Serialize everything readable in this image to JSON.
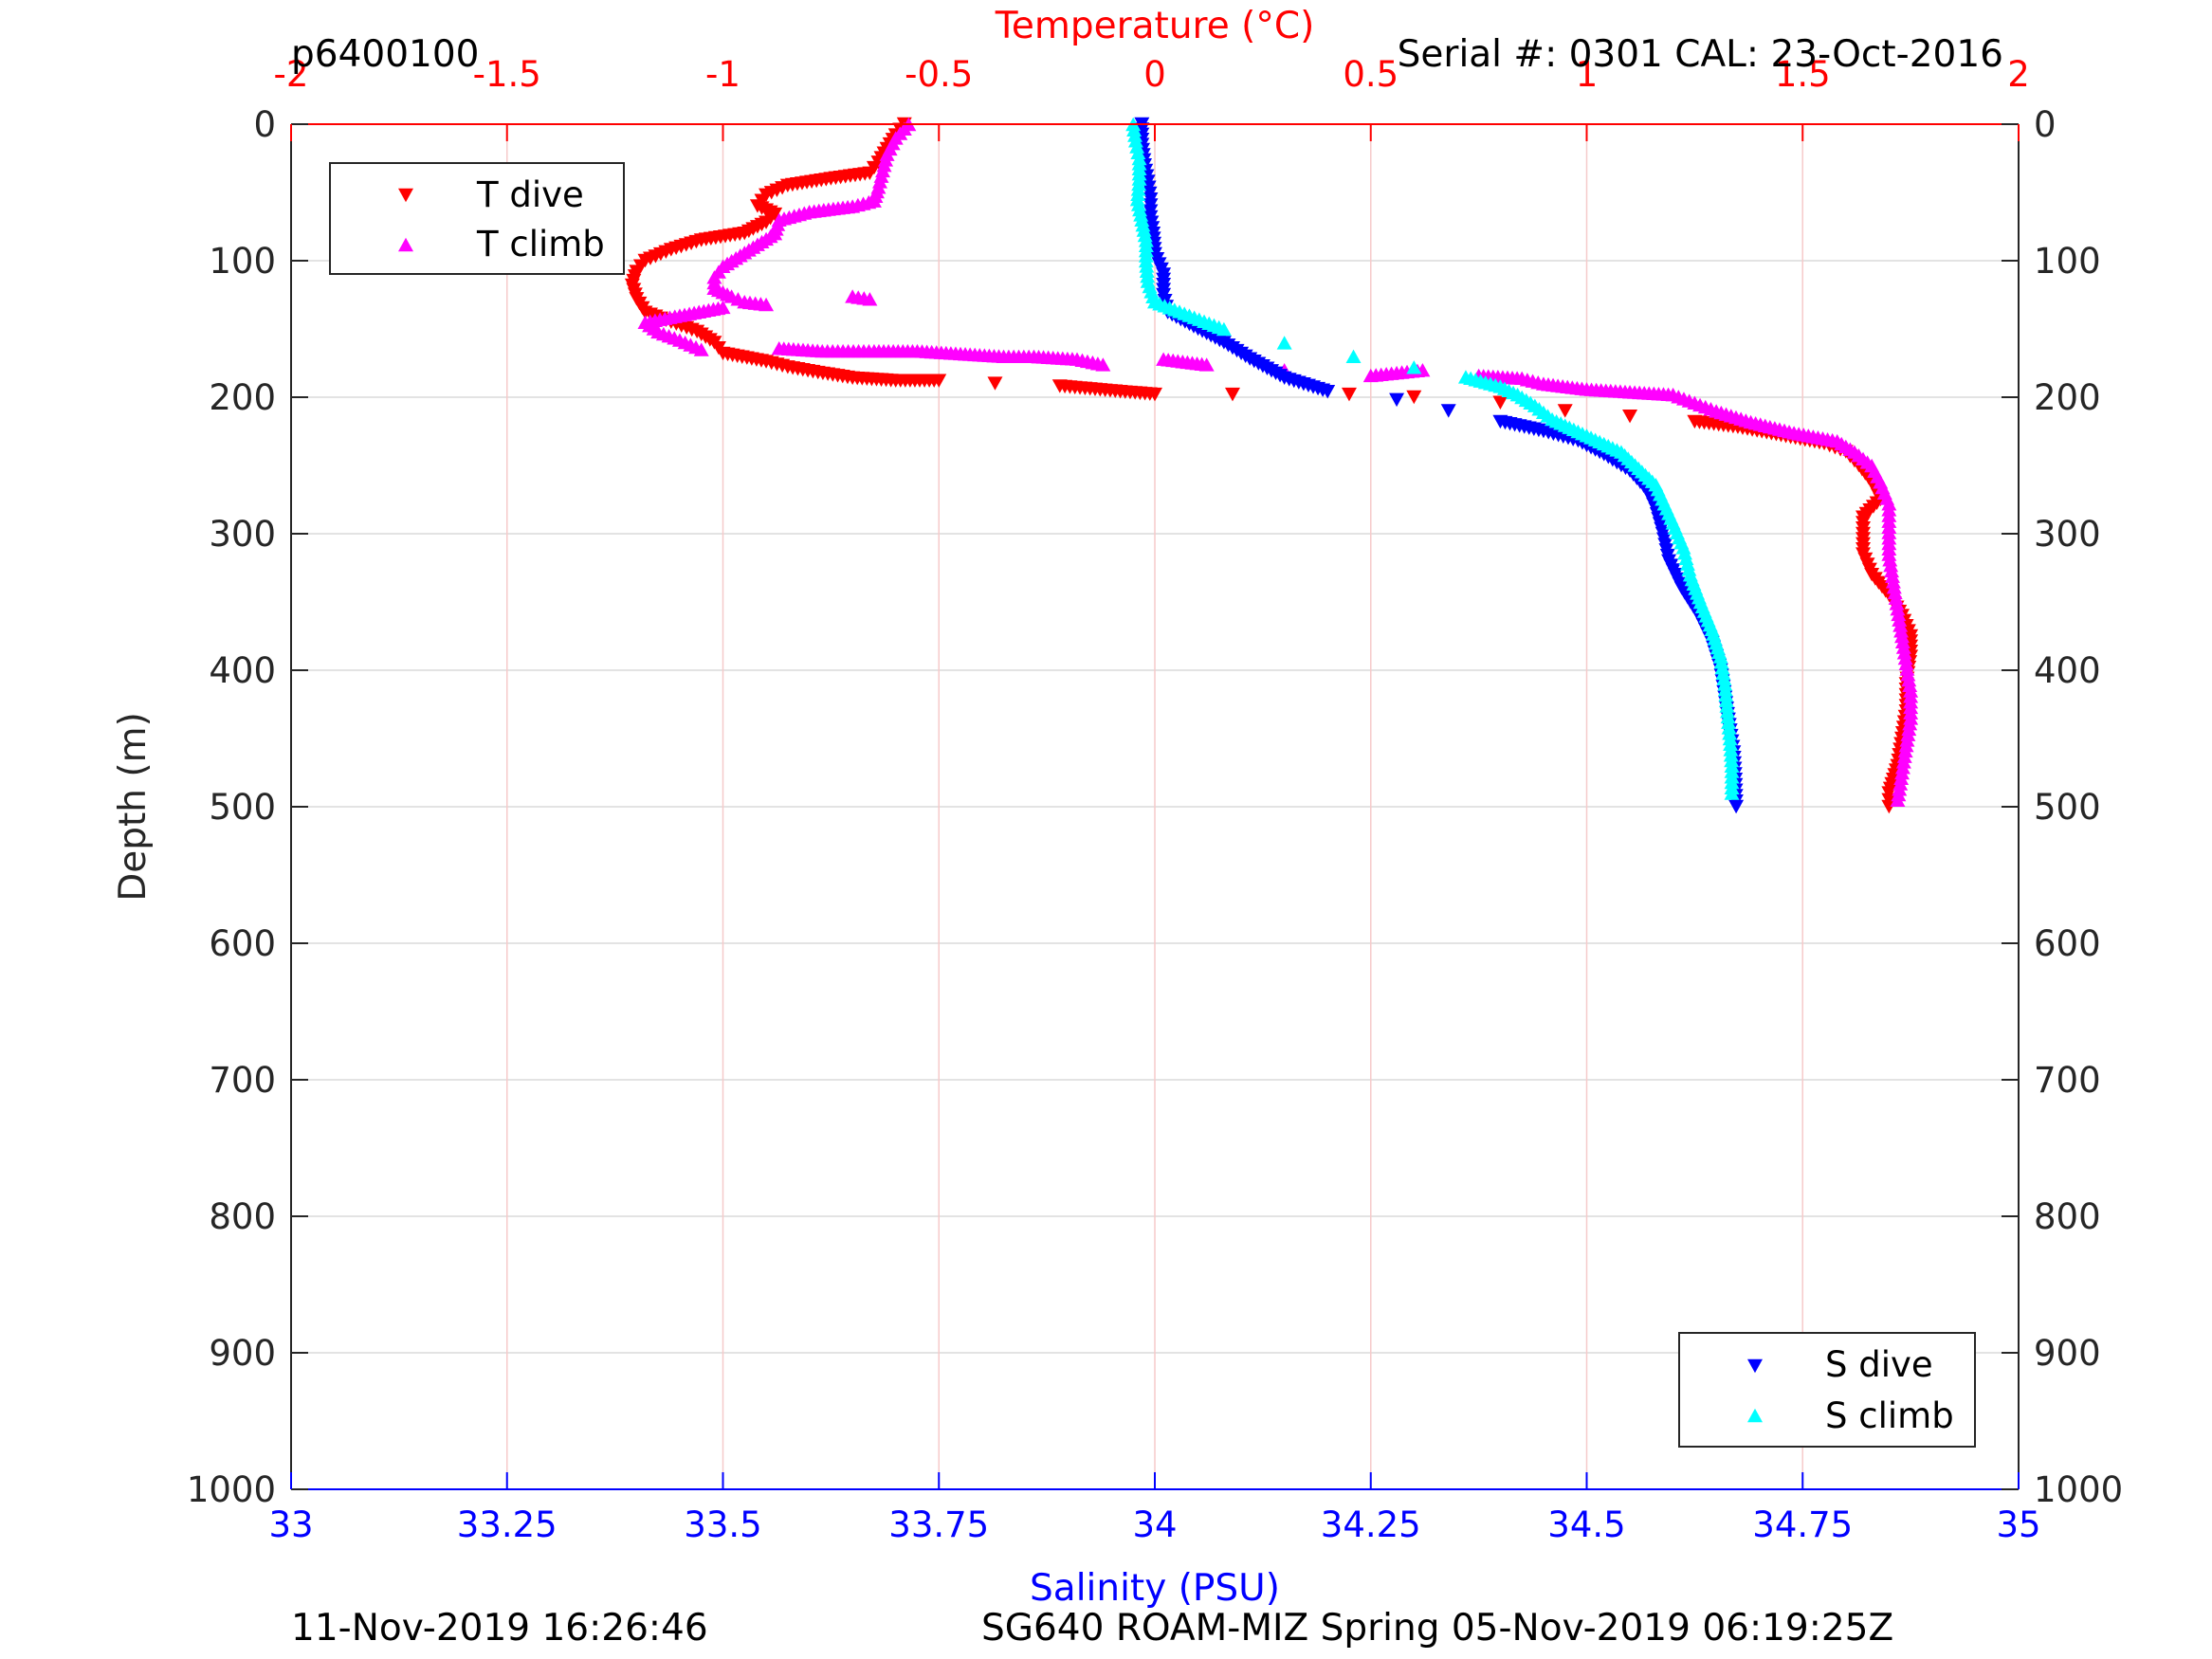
{
  "header": {
    "profile_id": "p6400100",
    "serial_cal": "Serial #: 0301  CAL: 23-Oct-2016"
  },
  "footer": {
    "timestamp": "11-Nov-2019 16:26:46",
    "mission": "SG640 ROAM-MIZ Spring 05-Nov-2019 06:19:25Z"
  },
  "colors": {
    "t_dive": "#ff0000",
    "t_climb": "#ff00ff",
    "s_dive": "#0000ff",
    "s_climb": "#00ffff",
    "temperature_axis": "#ff0000",
    "salinity_axis": "#0000ff"
  },
  "chart_data": {
    "type": "scatter",
    "title": "",
    "y_axis": {
      "label": "Depth (m)",
      "range": [
        0,
        1000
      ],
      "reversed": true,
      "ticks": [
        0,
        100,
        200,
        300,
        400,
        500,
        600,
        700,
        800,
        900,
        1000
      ],
      "tick_labels": [
        "0",
        "100",
        "200",
        "300",
        "400",
        "500",
        "600",
        "700",
        "800",
        "900",
        "1000"
      ]
    },
    "x_top_axis": {
      "label": "Temperature (°C)",
      "range": [
        -2,
        2
      ],
      "ticks": [
        -2,
        -1.5,
        -1,
        -0.5,
        0,
        0.5,
        1,
        1.5,
        2
      ],
      "tick_labels": [
        "-2",
        "-1.5",
        "-1",
        "-0.5",
        "0",
        "0.5",
        "1",
        "1.5",
        "2"
      ]
    },
    "x_bottom_axis": {
      "label": "Salinity (PSU)",
      "range": [
        33,
        35
      ],
      "ticks": [
        33,
        33.25,
        33.5,
        33.75,
        34,
        34.25,
        34.5,
        34.75,
        35
      ],
      "tick_labels": [
        "33",
        "33.25",
        "33.5",
        "33.75",
        "34",
        "34.25",
        "34.5",
        "34.75",
        "35"
      ]
    },
    "grid": true,
    "legends": [
      {
        "position": "top-left",
        "entries": [
          "T dive",
          "T climb"
        ]
      },
      {
        "position": "bottom-right",
        "entries": [
          "S dive",
          "S climb"
        ]
      }
    ],
    "series": [
      {
        "name": "T dive",
        "axis": "temperature",
        "marker": "triangle-down",
        "points": [
          [
            -0.58,
            0
          ],
          [
            -0.6,
            8
          ],
          [
            -0.62,
            18
          ],
          [
            -0.64,
            28
          ],
          [
            -0.66,
            36
          ],
          [
            -0.75,
            40
          ],
          [
            -0.85,
            45
          ],
          [
            -0.9,
            52
          ],
          [
            -0.92,
            60
          ],
          [
            -0.88,
            66
          ],
          [
            -0.9,
            72
          ],
          [
            -0.95,
            80
          ],
          [
            -1.05,
            85
          ],
          [
            -1.12,
            92
          ],
          [
            -1.18,
            100
          ],
          [
            -1.2,
            108
          ],
          [
            -1.21,
            118
          ],
          [
            -1.2,
            128
          ],
          [
            -1.18,
            138
          ],
          [
            -1.12,
            145
          ],
          [
            -1.06,
            152
          ],
          [
            -1.02,
            160
          ],
          [
            -1.0,
            168
          ],
          [
            -0.9,
            174
          ],
          [
            -0.85,
            178
          ],
          [
            -0.78,
            182
          ],
          [
            -0.7,
            186
          ],
          [
            -0.6,
            188
          ],
          [
            -0.5,
            188
          ],
          [
            -0.37,
            190
          ],
          [
            -0.22,
            192
          ],
          [
            -0.15,
            194
          ],
          [
            -0.08,
            196
          ],
          [
            0.0,
            198
          ],
          [
            0.18,
            198
          ],
          [
            0.45,
            198
          ],
          [
            0.6,
            200
          ],
          [
            0.8,
            204
          ],
          [
            0.95,
            210
          ],
          [
            1.1,
            214
          ],
          [
            1.25,
            218
          ],
          [
            1.35,
            222
          ],
          [
            1.45,
            228
          ],
          [
            1.55,
            234
          ],
          [
            1.6,
            240
          ],
          [
            1.63,
            250
          ],
          [
            1.66,
            262
          ],
          [
            1.68,
            275
          ],
          [
            1.64,
            288
          ],
          [
            1.64,
            300
          ],
          [
            1.64,
            315
          ],
          [
            1.66,
            330
          ],
          [
            1.7,
            345
          ],
          [
            1.73,
            360
          ],
          [
            1.75,
            375
          ],
          [
            1.75,
            390
          ],
          [
            1.74,
            410
          ],
          [
            1.74,
            430
          ],
          [
            1.73,
            450
          ],
          [
            1.72,
            470
          ],
          [
            1.7,
            490
          ],
          [
            1.7,
            500
          ]
        ]
      },
      {
        "name": "T climb",
        "axis": "temperature",
        "marker": "triangle-up",
        "points": [
          [
            -0.57,
            0
          ],
          [
            -0.6,
            10
          ],
          [
            -0.62,
            22
          ],
          [
            -0.63,
            34
          ],
          [
            -0.64,
            46
          ],
          [
            -0.65,
            56
          ],
          [
            -0.7,
            60
          ],
          [
            -0.8,
            64
          ],
          [
            -0.87,
            70
          ],
          [
            -0.88,
            80
          ],
          [
            -0.92,
            88
          ],
          [
            -0.96,
            96
          ],
          [
            -1.0,
            104
          ],
          [
            -1.02,
            112
          ],
          [
            -1.02,
            120
          ],
          [
            -0.98,
            126
          ],
          [
            -0.95,
            130
          ],
          [
            -0.9,
            132
          ],
          [
            -0.7,
            126
          ],
          [
            -0.66,
            128
          ],
          [
            -1.0,
            134
          ],
          [
            -1.1,
            140
          ],
          [
            -1.18,
            145
          ],
          [
            -1.15,
            152
          ],
          [
            -1.1,
            158
          ],
          [
            -1.05,
            165
          ],
          [
            -0.87,
            164
          ],
          [
            -0.77,
            166
          ],
          [
            -0.65,
            166
          ],
          [
            -0.55,
            166
          ],
          [
            -0.45,
            168
          ],
          [
            -0.35,
            170
          ],
          [
            -0.28,
            170
          ],
          [
            -0.18,
            172
          ],
          [
            -0.12,
            176
          ],
          [
            0.02,
            172
          ],
          [
            0.12,
            176
          ],
          [
            0.3,
            180
          ],
          [
            0.5,
            184
          ],
          [
            0.62,
            180
          ],
          [
            0.75,
            184
          ],
          [
            0.85,
            186
          ],
          [
            0.9,
            190
          ],
          [
            1.0,
            194
          ],
          [
            1.1,
            196
          ],
          [
            1.2,
            198
          ],
          [
            1.25,
            204
          ],
          [
            1.3,
            210
          ],
          [
            1.38,
            218
          ],
          [
            1.48,
            226
          ],
          [
            1.58,
            232
          ],
          [
            1.62,
            240
          ],
          [
            1.66,
            250
          ],
          [
            1.68,
            262
          ],
          [
            1.7,
            278
          ],
          [
            1.7,
            295
          ],
          [
            1.7,
            315
          ],
          [
            1.71,
            335
          ],
          [
            1.72,
            355
          ],
          [
            1.73,
            375
          ],
          [
            1.74,
            395
          ],
          [
            1.75,
            415
          ],
          [
            1.75,
            435
          ],
          [
            1.74,
            455
          ],
          [
            1.73,
            475
          ],
          [
            1.72,
            495
          ]
        ]
      },
      {
        "name": "S dive",
        "axis": "salinity",
        "marker": "triangle-down",
        "points": [
          [
            33.985,
            0
          ],
          [
            33.985,
            15
          ],
          [
            33.988,
            30
          ],
          [
            33.992,
            42
          ],
          [
            33.995,
            55
          ],
          [
            33.995,
            68
          ],
          [
            33.998,
            80
          ],
          [
            34.0,
            95
          ],
          [
            34.01,
            110
          ],
          [
            34.01,
            125
          ],
          [
            34.015,
            138
          ],
          [
            34.05,
            150
          ],
          [
            34.08,
            160
          ],
          [
            34.11,
            172
          ],
          [
            34.15,
            186
          ],
          [
            34.2,
            196
          ],
          [
            34.28,
            202
          ],
          [
            34.34,
            210
          ],
          [
            34.4,
            218
          ],
          [
            34.45,
            225
          ],
          [
            34.49,
            232
          ],
          [
            34.52,
            242
          ],
          [
            34.55,
            254
          ],
          [
            34.57,
            268
          ],
          [
            34.58,
            282
          ],
          [
            34.588,
            300
          ],
          [
            34.595,
            320
          ],
          [
            34.61,
            340
          ],
          [
            34.63,
            360
          ],
          [
            34.645,
            380
          ],
          [
            34.655,
            400
          ],
          [
            34.66,
            420
          ],
          [
            34.665,
            440
          ],
          [
            34.67,
            460
          ],
          [
            34.672,
            480
          ],
          [
            34.673,
            500
          ]
        ]
      },
      {
        "name": "S climb",
        "axis": "salinity",
        "marker": "triangle-up",
        "points": [
          [
            33.975,
            0
          ],
          [
            33.978,
            12
          ],
          [
            33.982,
            25
          ],
          [
            33.982,
            40
          ],
          [
            33.98,
            55
          ],
          [
            33.985,
            70
          ],
          [
            33.99,
            85
          ],
          [
            33.99,
            100
          ],
          [
            33.992,
            115
          ],
          [
            34.0,
            130
          ],
          [
            34.04,
            140
          ],
          [
            34.08,
            150
          ],
          [
            34.15,
            160
          ],
          [
            34.23,
            170
          ],
          [
            34.3,
            178
          ],
          [
            34.36,
            185
          ],
          [
            34.4,
            192
          ],
          [
            34.42,
            198
          ],
          [
            34.44,
            206
          ],
          [
            34.46,
            216
          ],
          [
            34.5,
            228
          ],
          [
            34.54,
            240
          ],
          [
            34.56,
            252
          ],
          [
            34.58,
            264
          ],
          [
            34.59,
            278
          ],
          [
            34.6,
            292
          ],
          [
            34.612,
            310
          ],
          [
            34.62,
            330
          ],
          [
            34.632,
            350
          ],
          [
            34.645,
            370
          ],
          [
            34.655,
            390
          ],
          [
            34.66,
            410
          ],
          [
            34.663,
            430
          ],
          [
            34.666,
            450
          ],
          [
            34.668,
            470
          ],
          [
            34.668,
            490
          ]
        ]
      }
    ]
  }
}
